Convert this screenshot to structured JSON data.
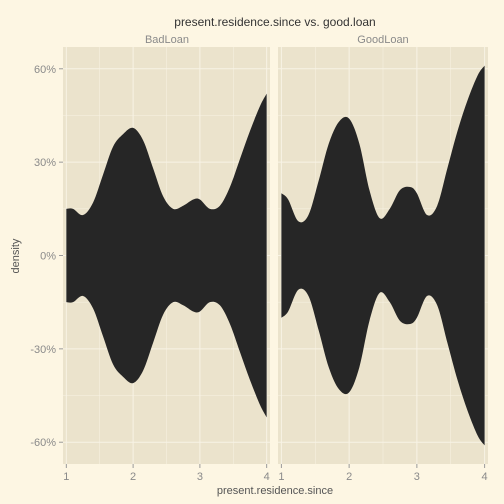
{
  "colors": {
    "background": "#fdf6e3",
    "panel": "#ebe3cc",
    "grid": "#f8f3e5",
    "fill": "#262626",
    "text": "#8a8a8a"
  },
  "chart_data": {
    "type": "area",
    "title": "present.residence.since  vs.  good.loan",
    "xlabel": "present.residence.since",
    "ylabel": "density",
    "x_ticks": [
      1,
      2,
      3,
      4
    ],
    "y_ticks": [
      -0.6,
      -0.3,
      0,
      0.3,
      0.6
    ],
    "y_tick_labels": [
      "-60%",
      "-30%",
      "0%",
      "30%",
      "60%"
    ],
    "ylim": [
      -0.67,
      0.67
    ],
    "xlim": [
      0.95,
      4.05
    ],
    "grid": true,
    "mirrored": true,
    "panels": [
      {
        "label": "BadLoan",
        "x": [
          1.0,
          1.1,
          1.25,
          1.4,
          1.55,
          1.7,
          1.85,
          2.0,
          2.15,
          2.3,
          2.45,
          2.6,
          2.75,
          2.9,
          3.0,
          3.15,
          3.3,
          3.45,
          3.6,
          3.75,
          3.9,
          4.0
        ],
        "density": [
          0.15,
          0.15,
          0.13,
          0.17,
          0.26,
          0.35,
          0.39,
          0.41,
          0.37,
          0.28,
          0.19,
          0.15,
          0.16,
          0.18,
          0.18,
          0.15,
          0.16,
          0.22,
          0.31,
          0.4,
          0.48,
          0.52
        ]
      },
      {
        "label": "GoodLoan",
        "x": [
          1.0,
          1.1,
          1.25,
          1.4,
          1.55,
          1.7,
          1.85,
          2.0,
          2.15,
          2.3,
          2.45,
          2.6,
          2.75,
          2.9,
          3.0,
          3.15,
          3.3,
          3.45,
          3.6,
          3.75,
          3.9,
          4.0
        ],
        "density": [
          0.2,
          0.18,
          0.11,
          0.13,
          0.24,
          0.36,
          0.43,
          0.44,
          0.36,
          0.21,
          0.12,
          0.15,
          0.21,
          0.22,
          0.2,
          0.13,
          0.16,
          0.28,
          0.4,
          0.5,
          0.58,
          0.61
        ]
      }
    ]
  }
}
